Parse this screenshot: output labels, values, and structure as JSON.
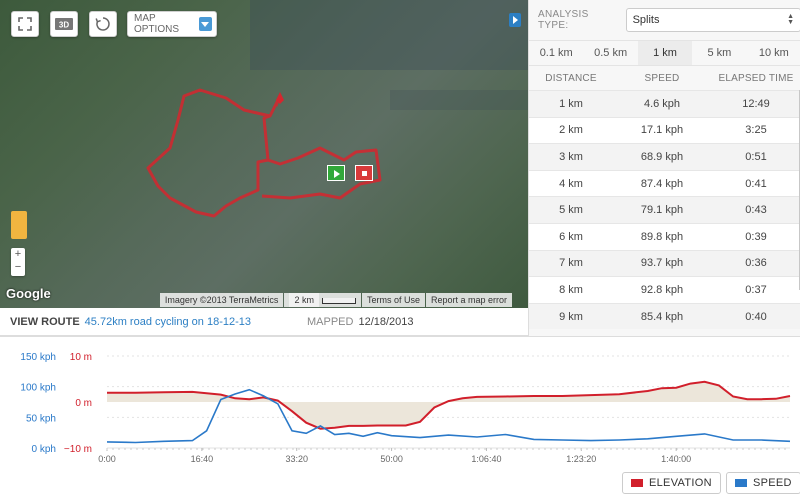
{
  "map": {
    "options_label": "MAP OPTIONS",
    "google_label": "Google",
    "imagery_label": "Imagery ©2013 TerraMetrics",
    "scale_label": "2 km",
    "terms_label": "Terms of Use",
    "report_label": "Report a map error",
    "zoom_in_label": "+",
    "zoom_out_label": "−"
  },
  "route": {
    "view_label": "VIEW ROUTE",
    "route_link": "45.72km road cycling on 18-12-13",
    "mapped_label": "MAPPED",
    "mapped_date": "12/18/2013"
  },
  "analysis": {
    "type_label": "ANALYSIS TYPE:",
    "type_value": "Splits",
    "tabs": [
      {
        "label": "0.1 km",
        "active": false
      },
      {
        "label": "0.5 km",
        "active": false
      },
      {
        "label": "1 km",
        "active": true
      },
      {
        "label": "5 km",
        "active": false
      },
      {
        "label": "10 km",
        "active": false
      }
    ],
    "columns": [
      "DISTANCE",
      "SPEED",
      "ELAPSED TIME"
    ],
    "rows": [
      {
        "distance": "1 km",
        "speed": "4.6 kph",
        "time": "12:49"
      },
      {
        "distance": "2 km",
        "speed": "17.1 kph",
        "time": "3:25"
      },
      {
        "distance": "3 km",
        "speed": "68.9 kph",
        "time": "0:51"
      },
      {
        "distance": "4 km",
        "speed": "87.4 kph",
        "time": "0:41"
      },
      {
        "distance": "5 km",
        "speed": "79.1 kph",
        "time": "0:43"
      },
      {
        "distance": "6 km",
        "speed": "89.8 kph",
        "time": "0:39"
      },
      {
        "distance": "7 km",
        "speed": "93.7 kph",
        "time": "0:36"
      },
      {
        "distance": "8 km",
        "speed": "92.8 kph",
        "time": "0:37"
      },
      {
        "distance": "9 km",
        "speed": "85.4 kph",
        "time": "0:40"
      }
    ]
  },
  "chart": {
    "speed_ticks": [
      "150 kph",
      "100 kph",
      "50 kph",
      "0 kph"
    ],
    "elev_ticks": [
      "10 m",
      "0 m",
      "−10 m"
    ],
    "x_ticks": [
      "0:00",
      "16:40",
      "33:20",
      "50:00",
      "1:06:40",
      "1:23:20",
      "1:40:00"
    ],
    "elevation_label": "ELEVATION",
    "speed_label": "SPEED",
    "elevation_color": "#d11f2b",
    "speed_color": "#2a79c9"
  },
  "chart_data": {
    "type": "line",
    "x_unit": "elapsed time (s)",
    "xlim": [
      0,
      7200
    ],
    "series": [
      {
        "name": "ELEVATION",
        "axis": "right",
        "unit": "m",
        "ylim": [
          -10,
          10
        ],
        "x": [
          0,
          300,
          600,
          900,
          1200,
          1350,
          1500,
          1650,
          1800,
          1950,
          2100,
          2250,
          2400,
          2550,
          2700,
          2850,
          3000,
          3150,
          3300,
          3450,
          3600,
          3750,
          3900,
          4200,
          4500,
          4800,
          5100,
          5400,
          5700,
          5850,
          6000,
          6150,
          6300,
          6450,
          6600,
          6750,
          6900,
          7050,
          7200
        ],
        "values": [
          2,
          2,
          2.1,
          2.2,
          1.6,
          0.8,
          0.6,
          1,
          0.3,
          -2,
          -4.5,
          -5.8,
          -5.6,
          -5.2,
          -5.2,
          -5.1,
          -5.1,
          -5.1,
          -4.3,
          -1.2,
          0.2,
          0.8,
          1.1,
          1.2,
          1.3,
          1.3,
          1.5,
          1.7,
          2.4,
          3.0,
          3.1,
          4.0,
          4.4,
          3.6,
          1.2,
          0.6,
          0.6,
          0.7,
          1.3
        ]
      },
      {
        "name": "SPEED",
        "axis": "left",
        "unit": "kph",
        "ylim": [
          0,
          150
        ],
        "x": [
          0,
          300,
          600,
          900,
          1050,
          1200,
          1350,
          1500,
          1650,
          1800,
          1950,
          2100,
          2250,
          2400,
          2550,
          2700,
          2850,
          3000,
          3300,
          3600,
          3900,
          4200,
          4500,
          4800,
          5100,
          5400,
          5700,
          6000,
          6300,
          6600,
          6900,
          7200
        ],
        "values": [
          10,
          9,
          11,
          12,
          28,
          79,
          88,
          95,
          85,
          72,
          28,
          24,
          36,
          22,
          24,
          19,
          25,
          20,
          17,
          21,
          18,
          22,
          14,
          13,
          12,
          13,
          15,
          19,
          23,
          13,
          13,
          11
        ]
      }
    ]
  }
}
